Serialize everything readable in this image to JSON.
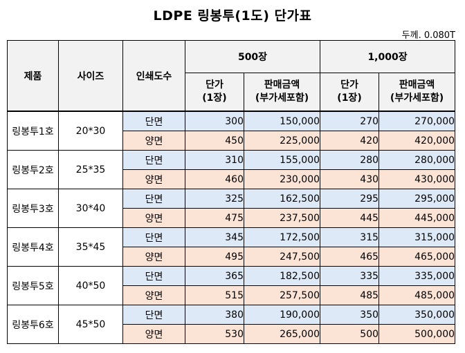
{
  "title": "LDPE 링봉투(1도) 단가표",
  "thickness": "두께. 0.080T",
  "headers": {
    "product": "제품",
    "size": "사이즈",
    "print_count": "인쇄도수",
    "qty_500": "500장",
    "qty_1000": "1,000장",
    "unit_price_line1": "단가",
    "unit_price_line2": "(1장)",
    "sale_amount_line1": "판매금액",
    "sale_amount_line2": "(부가세포함)"
  },
  "rows": [
    {
      "name": "링봉투1호",
      "size": "20*30",
      "single": {
        "label": "단면",
        "p500": "300",
        "a500": "150,000",
        "p1000": "270",
        "a1000": "270,000"
      },
      "double": {
        "label": "양면",
        "p500": "450",
        "a500": "225,000",
        "p1000": "420",
        "a1000": "420,000"
      }
    },
    {
      "name": "링봉투2호",
      "size": "25*35",
      "single": {
        "label": "단면",
        "p500": "310",
        "a500": "155,000",
        "p1000": "280",
        "a1000": "280,000"
      },
      "double": {
        "label": "양면",
        "p500": "460",
        "a500": "230,000",
        "p1000": "430",
        "a1000": "430,000"
      }
    },
    {
      "name": "링봉투3호",
      "size": "30*40",
      "single": {
        "label": "단면",
        "p500": "325",
        "a500": "162,500",
        "p1000": "295",
        "a1000": "295,000"
      },
      "double": {
        "label": "양면",
        "p500": "475",
        "a500": "237,500",
        "p1000": "445",
        "a1000": "445,000"
      }
    },
    {
      "name": "링봉투4호",
      "size": "35*45",
      "single": {
        "label": "단면",
        "p500": "345",
        "a500": "172,500",
        "p1000": "315",
        "a1000": "315,000"
      },
      "double": {
        "label": "양면",
        "p500": "495",
        "a500": "247,500",
        "p1000": "465",
        "a1000": "465,000"
      }
    },
    {
      "name": "링봉투5호",
      "size": "40*50",
      "single": {
        "label": "단면",
        "p500": "365",
        "a500": "182,500",
        "p1000": "335",
        "a1000": "335,000"
      },
      "double": {
        "label": "양면",
        "p500": "515",
        "a500": "257,500",
        "p1000": "485",
        "a1000": "485,000"
      }
    },
    {
      "name": "링봉투6호",
      "size": "45*50",
      "single": {
        "label": "단면",
        "p500": "380",
        "a500": "190,000",
        "p1000": "350",
        "a1000": "350,000"
      },
      "double": {
        "label": "양면",
        "p500": "530",
        "a500": "265,000",
        "p1000": "500",
        "a1000": "500,000"
      }
    }
  ],
  "colors": {
    "single_side_bg": "#dde9f6",
    "double_side_bg": "#fbe3d6",
    "header_bg": "#f2f2f2"
  }
}
